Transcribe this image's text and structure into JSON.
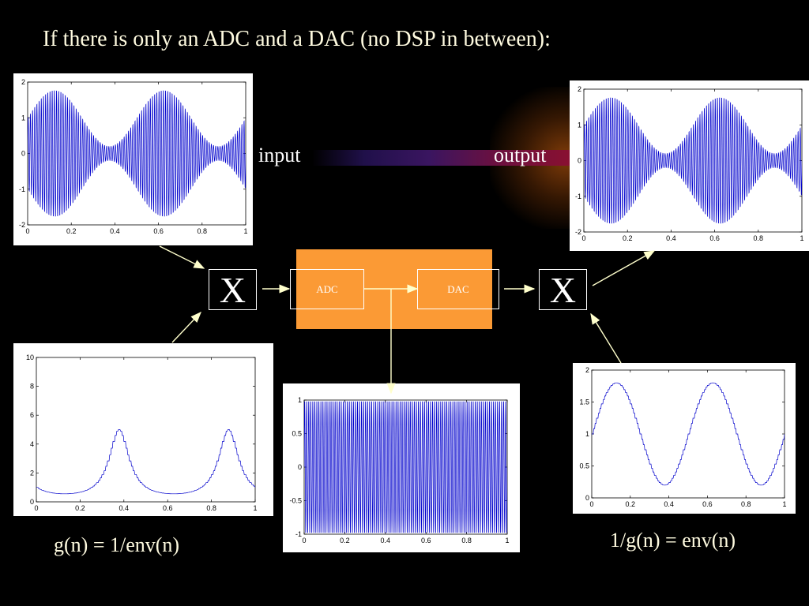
{
  "title": "If there is only an ADC and a DAC (no DSP in between):",
  "labels": {
    "input": "input",
    "output": "output",
    "mult_left": "X",
    "mult_right": "X",
    "adc": "ADC",
    "dac": "DAC",
    "caption_left": "g(n) = 1/env(n)",
    "caption_right": "1/g(n) = env(n)"
  },
  "colors": {
    "trace": "#0000cc",
    "block": "#fb9a35",
    "arrow": "#ffffcc",
    "title": "#fffbe0"
  },
  "chart_data": [
    {
      "id": "input-plot",
      "type": "line",
      "description_of_signal": "high-frequency carrier modulated by env(n)",
      "xlim": [
        0,
        1
      ],
      "ylim": [
        -2,
        2
      ],
      "xticks": [
        "0",
        "0.2",
        "0.4",
        "0.6",
        "0.8",
        "1"
      ],
      "yticks": [
        "2",
        "1",
        "0",
        "-1",
        "-2"
      ],
      "envelope": {
        "offset": 1,
        "amplitude": 0.8,
        "period": 0.5
      }
    },
    {
      "id": "output-plot",
      "type": "line",
      "xlim": [
        0,
        1
      ],
      "ylim": [
        -2,
        2
      ],
      "xticks": [
        "0",
        "0.2",
        "0.4",
        "0.6",
        "0.8",
        "1"
      ],
      "yticks": [
        "2",
        "1",
        "0",
        "-1",
        "-2"
      ],
      "envelope": {
        "offset": 1,
        "amplitude": 0.8,
        "period": 0.5
      }
    },
    {
      "id": "g-plot",
      "type": "line",
      "xlim": [
        0,
        1
      ],
      "ylim": [
        0,
        10
      ],
      "xticks": [
        "0",
        "0.2",
        "0.4",
        "0.6",
        "0.8",
        "1"
      ],
      "yticks": [
        "10",
        "8",
        "6",
        "4",
        "2",
        "0"
      ],
      "peaks_at": [
        0.375,
        0.875
      ],
      "peak_value": 5,
      "min_value": 0.56
    },
    {
      "id": "adc-plot",
      "type": "line",
      "xlim": [
        0,
        1
      ],
      "ylim": [
        -1,
        1
      ],
      "xticks": [
        "0",
        "0.2",
        "0.4",
        "0.6",
        "0.8",
        "1"
      ],
      "yticks": [
        "1",
        "0.5",
        "0",
        "-0.5",
        "-1"
      ]
    },
    {
      "id": "env-plot",
      "type": "line",
      "xlim": [
        0,
        1
      ],
      "ylim": [
        0,
        2
      ],
      "xticks": [
        "0",
        "0.2",
        "0.4",
        "0.6",
        "0.8",
        "1"
      ],
      "yticks": [
        "2",
        "1.5",
        "1",
        "0.5",
        "0"
      ],
      "peaks_at": [
        0.125,
        0.625
      ],
      "peak_value": 1.8,
      "min_value": 0.2
    }
  ]
}
